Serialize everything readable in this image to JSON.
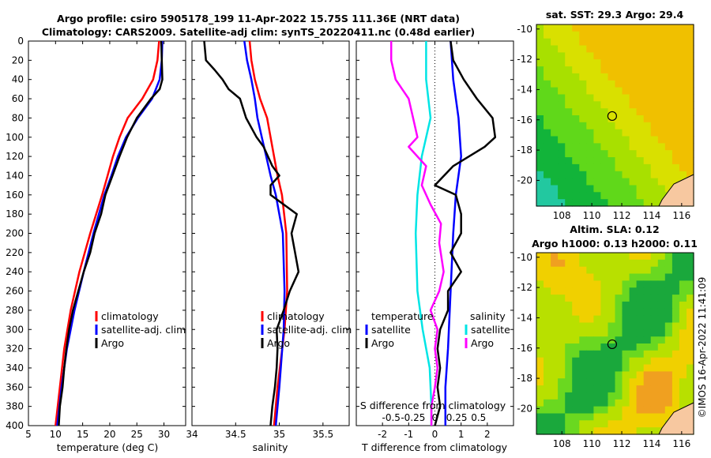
{
  "title": {
    "line1": "Argo profile: csiro 5905178_199 11-Apr-2022 15.75S 111.36E (NRT data)",
    "line2": "Climatology: CARS2009. Satellite-adj clim: synTS_20220411.nc (0.48d earlier)"
  },
  "watermark": "©IMOS 16-Apr-2022 11:41:09",
  "colors": {
    "climatology": "#ff0000",
    "satellite": "#0000ff",
    "argo": "#000000",
    "satellite_salinity": "#00e5e5",
    "argo_salinity": "#ff00ff"
  },
  "chart_data": [
    {
      "type": "line",
      "name": "temperature-profile",
      "xlabel": "temperature (deg C)",
      "ylabel": "",
      "xlim": [
        5,
        34
      ],
      "ylim": [
        400,
        0
      ],
      "xticks": [
        5,
        10,
        15,
        20,
        25,
        30
      ],
      "yticks": [
        0,
        20,
        40,
        60,
        80,
        100,
        120,
        140,
        160,
        180,
        200,
        220,
        240,
        260,
        280,
        300,
        320,
        340,
        360,
        380,
        400
      ],
      "legend": [
        "climatology",
        "satellite-adj. clim",
        "Argo"
      ],
      "series": [
        {
          "name": "climatology",
          "color": "#ff0000",
          "depth": [
            0,
            20,
            40,
            60,
            80,
            100,
            120,
            140,
            160,
            200,
            240,
            280,
            320,
            360,
            400
          ],
          "values": [
            29.1,
            28.8,
            28.0,
            26.0,
            23.3,
            21.8,
            20.6,
            19.6,
            18.6,
            16.4,
            14.4,
            12.8,
            11.6,
            10.8,
            10.0
          ]
        },
        {
          "name": "satellite-adj. clim",
          "color": "#0000ff",
          "depth": [
            0,
            20,
            40,
            60,
            80,
            100,
            120,
            140,
            160,
            200,
            240,
            280,
            320,
            360,
            400
          ],
          "values": [
            29.7,
            29.6,
            29.2,
            27.8,
            25.2,
            23.0,
            21.5,
            20.3,
            19.0,
            17.0,
            15.2,
            13.5,
            12.1,
            11.1,
            10.3
          ]
        },
        {
          "name": "Argo",
          "color": "#000000",
          "depth": [
            0,
            20,
            40,
            50,
            60,
            80,
            100,
            120,
            140,
            160,
            180,
            200,
            220,
            240,
            260,
            280,
            300,
            320,
            340,
            360,
            380,
            400
          ],
          "values": [
            29.5,
            29.6,
            29.7,
            29.2,
            27.6,
            25.0,
            23.2,
            21.8,
            20.5,
            19.2,
            18.4,
            17.2,
            16.4,
            15.2,
            14.2,
            13.2,
            12.5,
            12.0,
            11.6,
            11.3,
            10.8,
            10.6
          ]
        }
      ]
    },
    {
      "type": "line",
      "name": "salinity-profile",
      "xlabel": "salinity",
      "ylabel": "",
      "xlim": [
        34,
        35.8
      ],
      "ylim": [
        400,
        0
      ],
      "xticks": [
        34,
        34.5,
        35,
        35.5
      ],
      "xticklabels": [
        "34",
        "34.5",
        "35",
        "35.5"
      ],
      "legend": [
        "climatology",
        "satellite-adj. clim",
        "Argo"
      ],
      "series": [
        {
          "name": "climatology",
          "color": "#ff0000",
          "depth": [
            0,
            20,
            40,
            60,
            80,
            100,
            120,
            140,
            160,
            200,
            260,
            300,
            360,
            400
          ],
          "values": [
            34.66,
            34.68,
            34.72,
            34.78,
            34.86,
            34.9,
            34.94,
            34.98,
            35.03,
            35.08,
            35.09,
            35.06,
            34.98,
            34.94
          ]
        },
        {
          "name": "satellite-adj. clim",
          "color": "#0000ff",
          "depth": [
            0,
            20,
            40,
            60,
            80,
            100,
            120,
            140,
            160,
            200,
            260,
            300,
            360,
            400
          ],
          "values": [
            34.6,
            34.63,
            34.68,
            34.72,
            34.75,
            34.8,
            34.85,
            34.9,
            34.96,
            35.04,
            35.06,
            35.05,
            35.0,
            34.96
          ]
        },
        {
          "name": "Argo",
          "color": "#000000",
          "depth": [
            0,
            20,
            30,
            40,
            50,
            60,
            80,
            100,
            110,
            130,
            140,
            150,
            160,
            180,
            200,
            220,
            240,
            260,
            280,
            300,
            320,
            340,
            360,
            380,
            400
          ],
          "values": [
            34.14,
            34.16,
            34.26,
            34.35,
            34.42,
            34.55,
            34.62,
            34.74,
            34.82,
            34.92,
            35.0,
            34.9,
            34.9,
            35.2,
            35.14,
            35.18,
            35.22,
            35.12,
            35.05,
            34.97,
            34.98,
            34.97,
            34.95,
            34.92,
            34.9
          ]
        }
      ]
    },
    {
      "type": "line",
      "name": "difference-profile",
      "xlabel": "T difference from climatology",
      "xlabel_top": "S difference from climatology",
      "xlim": [
        -3,
        3
      ],
      "ylim": [
        400,
        0
      ],
      "xticks": [
        -2,
        -1,
        0,
        1,
        2
      ],
      "sticks": [
        -0.5,
        -0.25,
        0,
        0.25,
        0.5
      ],
      "sticklabels": [
        "-0.5",
        "-0.25",
        "0",
        "0.25",
        "0.5"
      ],
      "legend_temperature_title": "temperature",
      "legend_salinity_title": "salinity",
      "legend": [
        "satellite",
        "Argo",
        "satellite",
        "Argo"
      ],
      "series": [
        {
          "name": "temperature satellite",
          "color": "#0000ff",
          "depth": [
            0,
            40,
            80,
            120,
            160,
            200,
            260,
            320,
            360,
            400
          ],
          "values": [
            0.6,
            0.7,
            0.9,
            1.0,
            0.8,
            0.7,
            0.6,
            0.5,
            0.4,
            0.4
          ]
        },
        {
          "name": "temperature Argo",
          "color": "#000000",
          "depth": [
            0,
            20,
            40,
            60,
            80,
            100,
            110,
            130,
            150,
            160,
            180,
            200,
            220,
            240,
            260,
            280,
            300,
            320,
            340,
            360,
            380,
            400
          ],
          "values": [
            0.6,
            0.7,
            1.1,
            1.6,
            2.2,
            2.3,
            1.9,
            0.7,
            0.0,
            0.8,
            1.0,
            1.0,
            0.6,
            1.0,
            0.5,
            0.5,
            0.2,
            0.1,
            0.2,
            0.1,
            0.2,
            0.0
          ]
        },
        {
          "name": "salinity satellite",
          "color": "#00e5e5",
          "depth": [
            0,
            40,
            80,
            120,
            160,
            200,
            260,
            300,
            340,
            380,
            400
          ],
          "values": [
            -0.1,
            -0.1,
            -0.05,
            -0.15,
            -0.2,
            -0.22,
            -0.2,
            -0.14,
            -0.06,
            -0.04,
            -0.04
          ]
        },
        {
          "name": "salinity Argo",
          "color": "#ff00ff",
          "depth": [
            0,
            20,
            40,
            60,
            80,
            100,
            110,
            130,
            150,
            170,
            190,
            210,
            240,
            260,
            280,
            300,
            320,
            340,
            360,
            380,
            400
          ],
          "values": [
            -0.5,
            -0.5,
            -0.45,
            -0.3,
            -0.25,
            -0.2,
            -0.3,
            -0.1,
            -0.15,
            -0.05,
            0.07,
            0.05,
            0.1,
            0.05,
            -0.05,
            0.03,
            0.0,
            0.03,
            0.0,
            -0.04,
            -0.04
          ]
        }
      ]
    },
    {
      "type": "heatmap",
      "name": "satellite-sst-map",
      "title": "sat. SST: 29.3 Argo: 29.4",
      "xlim": [
        106.3,
        116.8
      ],
      "ylim": [
        -21.7,
        -9.7
      ],
      "xticks": [
        108,
        110,
        112,
        114,
        116
      ],
      "yticks": [
        -10,
        -12,
        -14,
        -16,
        -18,
        -20
      ],
      "marker": {
        "lon": 111.36,
        "lat": -15.75
      }
    },
    {
      "type": "heatmap",
      "name": "altimetry-sla-map",
      "title": "Altim. SLA: 0.12",
      "subtitle": "Argo h1000: 0.13 h2000: 0.11",
      "xlim": [
        106.3,
        116.8
      ],
      "ylim": [
        -21.7,
        -9.7
      ],
      "xticks": [
        108,
        110,
        112,
        114,
        116
      ],
      "yticks": [
        -10,
        -12,
        -14,
        -16,
        -18,
        -20
      ],
      "marker": {
        "lon": 111.36,
        "lat": -15.75
      }
    }
  ]
}
